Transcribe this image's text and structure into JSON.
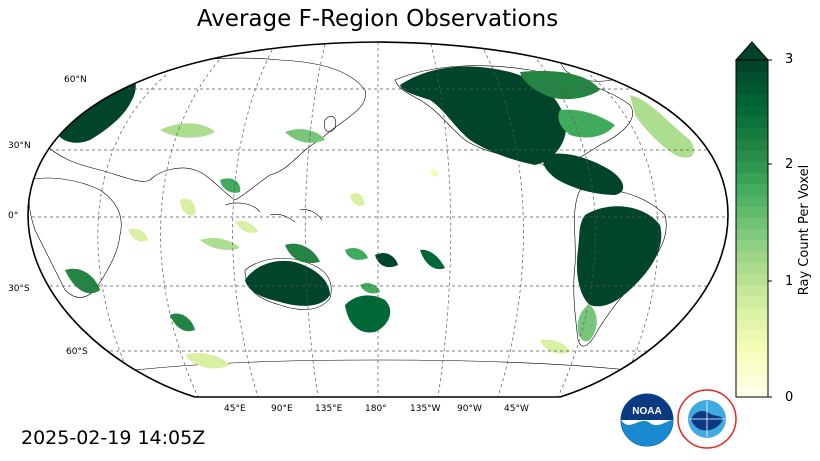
{
  "title": "Average F-Region Observations",
  "timestamp": "2025-02-19 14:05Z",
  "lat_labels": [
    "60°N",
    "30°N",
    "0°",
    "30°S",
    "60°S"
  ],
  "lon_labels": [
    "45°E",
    "90°E",
    "135°E",
    "180°",
    "135°W",
    "90°W",
    "45°W"
  ],
  "colorbar": {
    "label": "Ray Count Per Voxel",
    "ticks": [
      "0",
      "1",
      "2",
      "3"
    ],
    "min": 0,
    "max": 3,
    "extend": "max",
    "colormap": "YlGn",
    "colors": [
      "#ffffe5",
      "#f7fcb9",
      "#d9f0a3",
      "#addd8e",
      "#78c679",
      "#41ab5d",
      "#238443",
      "#006837",
      "#004529"
    ]
  },
  "logos": {
    "noaa": {
      "text": "NOAA",
      "color": "#0b4ea2"
    },
    "nws": {
      "text": "NATIONAL WEATHER SERVICE",
      "color": "#e1261c"
    }
  },
  "map_style": {
    "projection": "Robinson",
    "graticule": "dashed",
    "coastlines": "black"
  }
}
